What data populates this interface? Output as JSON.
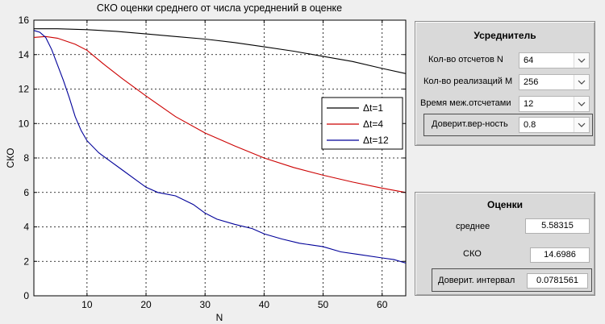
{
  "plot": {
    "title": "СКО оценки среднего от числа усреднений в оценке",
    "xlabel": "N",
    "ylabel": "СКО"
  },
  "chart_data": {
    "type": "line",
    "title": "СКО оценки среднего от числа усреднений в оценке",
    "xlabel": "N",
    "ylabel": "СКО",
    "xlim": [
      1,
      64
    ],
    "ylim": [
      0,
      16
    ],
    "xticks": [
      10,
      20,
      30,
      40,
      50,
      60
    ],
    "yticks": [
      0,
      2,
      4,
      6,
      8,
      10,
      12,
      14,
      16
    ],
    "grid": true,
    "legend_position": "right",
    "series": [
      {
        "name": "Δt=1",
        "color": "#000000",
        "x": [
          1,
          5,
          10,
          15,
          20,
          25,
          30,
          35,
          40,
          45,
          50,
          55,
          60,
          64
        ],
        "y": [
          15.5,
          15.5,
          15.45,
          15.35,
          15.2,
          15.05,
          14.9,
          14.7,
          14.45,
          14.2,
          13.9,
          13.6,
          13.2,
          12.9
        ]
      },
      {
        "name": "Δt=4",
        "color": "#cc0000",
        "x": [
          1,
          3,
          5,
          8,
          10,
          13,
          16,
          20,
          25,
          30,
          35,
          40,
          45,
          50,
          55,
          60,
          64
        ],
        "y": [
          15.0,
          15.05,
          14.95,
          14.6,
          14.25,
          13.4,
          12.6,
          11.6,
          10.4,
          9.45,
          8.7,
          8.0,
          7.45,
          7.0,
          6.6,
          6.25,
          6.0
        ]
      },
      {
        "name": "Δt=12",
        "color": "#000099",
        "x": [
          1,
          2,
          3,
          4,
          5,
          6,
          7,
          8,
          9,
          10,
          12,
          14,
          16,
          18,
          20,
          22,
          25,
          28,
          30,
          32,
          35,
          38,
          40,
          43,
          46,
          50,
          53,
          56,
          60,
          62,
          64
        ],
        "y": [
          15.4,
          15.3,
          15.0,
          14.3,
          13.4,
          12.5,
          11.5,
          10.4,
          9.6,
          9.0,
          8.3,
          7.8,
          7.3,
          6.8,
          6.3,
          6.0,
          5.8,
          5.3,
          4.8,
          4.45,
          4.15,
          3.9,
          3.6,
          3.3,
          3.05,
          2.85,
          2.55,
          2.4,
          2.2,
          2.1,
          1.9
        ]
      }
    ]
  },
  "averager_panel": {
    "title": "Усреднитель",
    "rows": [
      {
        "label": "Кол-во отсчетов N",
        "value": "64"
      },
      {
        "label": "Кол-во реализаций M",
        "value": "256"
      },
      {
        "label": "Время меж.отсчетами",
        "value": "12"
      },
      {
        "label": "Доверит.вер-ность",
        "value": "0.8"
      }
    ]
  },
  "estimates_panel": {
    "title": "Оценки",
    "rows": [
      {
        "label": "среднее",
        "value": "5.58315"
      },
      {
        "label": "СКО",
        "value": "14.6986"
      },
      {
        "label": "Доверит. интервал",
        "value": "0.0781561"
      }
    ]
  },
  "colors": {
    "plot_background": "#ffffff",
    "window_background": "#efefef",
    "panel_background": "#d9d9d9"
  },
  "icons": {
    "dropdown_arrow": "chevron-down-icon"
  }
}
